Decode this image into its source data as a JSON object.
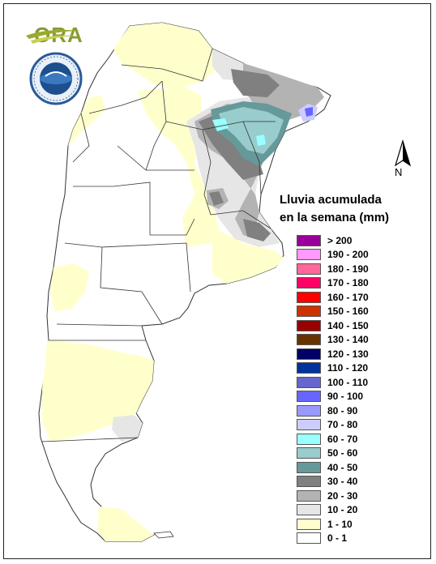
{
  "logo": {
    "text": "ORA"
  },
  "north_arrow": {
    "label": "N"
  },
  "legend": {
    "title_line1": "Lluvia acumulada",
    "title_line2": "en la semana (mm)",
    "items": [
      {
        "label": "> 200",
        "color": "#990099"
      },
      {
        "label": "190 - 200",
        "color": "#ff99ff"
      },
      {
        "label": "180 - 190",
        "color": "#ff6699"
      },
      {
        "label": "170 - 180",
        "color": "#ff0066"
      },
      {
        "label": "160 - 170",
        "color": "#ff0000"
      },
      {
        "label": "150 - 160",
        "color": "#cc3300"
      },
      {
        "label": "140 - 150",
        "color": "#990000"
      },
      {
        "label": "130 - 140",
        "color": "#663300"
      },
      {
        "label": "120 - 130",
        "color": "#000066"
      },
      {
        "label": "110 - 120",
        "color": "#003399"
      },
      {
        "label": "100 - 110",
        "color": "#6666cc"
      },
      {
        "label": "90 - 100",
        "color": "#6666ff"
      },
      {
        "label": "80 - 90",
        "color": "#9999ff"
      },
      {
        "label": "70 - 80",
        "color": "#ccccff"
      },
      {
        "label": "60 - 70",
        "color": "#99ffff"
      },
      {
        "label": "50 - 60",
        "color": "#99cccc"
      },
      {
        "label": "40 - 50",
        "color": "#669999"
      },
      {
        "label": "30 - 40",
        "color": "#808080"
      },
      {
        "label": "20 - 30",
        "color": "#b3b3b3"
      },
      {
        "label": "10 - 20",
        "color": "#e6e6e6"
      },
      {
        "label": "1 - 10",
        "color": "#ffffcc"
      },
      {
        "label": "0 - 1",
        "color": "#ffffff"
      }
    ]
  }
}
